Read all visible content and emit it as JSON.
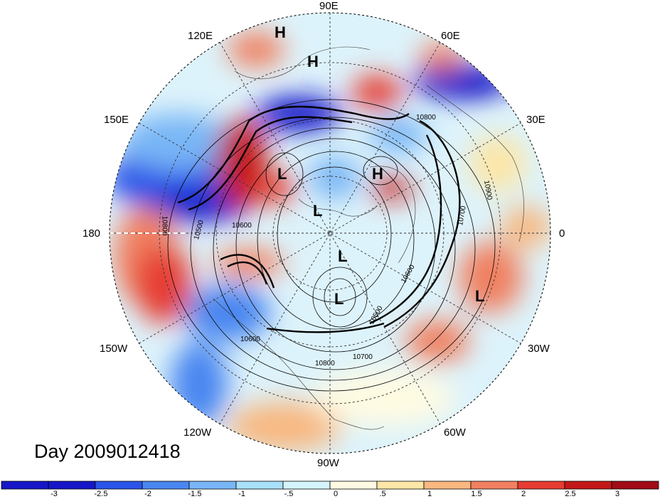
{
  "map": {
    "projection": "north-polar-stereographic",
    "longitude_labels": [
      "90E",
      "60E",
      "30E",
      "0",
      "30W",
      "60W",
      "90W",
      "120W",
      "150W",
      "180",
      "150E",
      "120E"
    ],
    "pressure_systems": [
      "H",
      "H",
      "L",
      "H",
      "L",
      "L",
      "L",
      "L"
    ],
    "contour_labels": [
      "10800",
      "10900",
      "10700",
      "10500",
      "10800",
      "10600",
      "10600",
      "10800",
      "10700",
      "10500",
      "10600"
    ],
    "date_label": "Day 2009012418"
  },
  "colorbar": {
    "ticks": [
      "-3",
      "-2.5",
      "-2",
      "-1.5",
      "-1",
      "-.5",
      "0",
      ".5",
      "1",
      "1.5",
      "2",
      "2.5",
      "3"
    ],
    "colors": [
      "#1616c8",
      "#2a55e8",
      "#4a86f0",
      "#78b6f6",
      "#a8e0fa",
      "#d4f4fc",
      "#fffbe2",
      "#fde6a6",
      "#f8b880",
      "#f08060",
      "#e63c32",
      "#c41818",
      "#a00c18"
    ]
  }
}
